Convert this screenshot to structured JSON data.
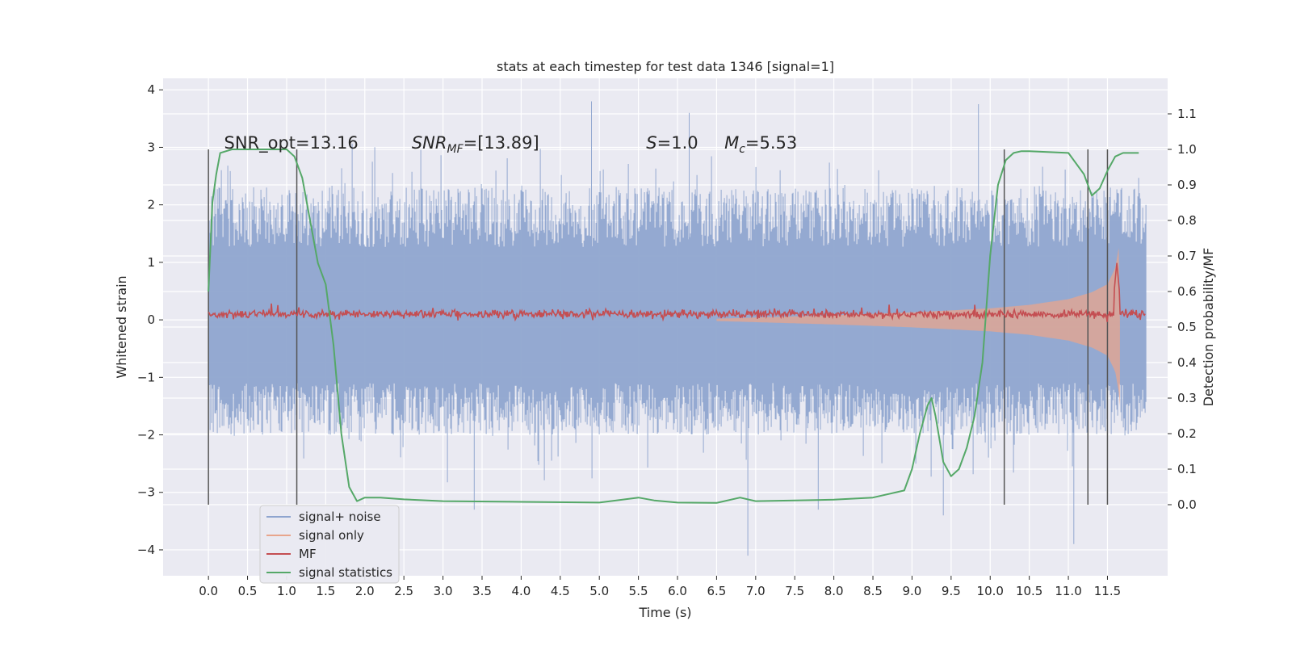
{
  "chart_data": {
    "type": "line",
    "title": "stats at each timestep for test data 1346 [signal=1]",
    "xlabel": "Time (s)",
    "ylabel": "Whitened strain",
    "ylabel_right": "Detection probability/MF",
    "xlim": [
      -0.58,
      12.27
    ],
    "ylim": [
      -4.45,
      4.2
    ],
    "ylim_right": [
      -0.2,
      1.2
    ],
    "grid": true,
    "legend_position": "lower-left",
    "x_ticks": [
      "0.0",
      "0.5",
      "1.0",
      "1.5",
      "2.0",
      "2.5",
      "3.0",
      "3.5",
      "4.0",
      "4.5",
      "5.0",
      "5.5",
      "6.0",
      "6.5",
      "7.0",
      "7.5",
      "8.0",
      "8.5",
      "9.0",
      "9.5",
      "10.0",
      "10.5",
      "11.0",
      "11.5"
    ],
    "y_ticks_left": [
      "4",
      "3",
      "2",
      "1",
      "0",
      "−1",
      "−2",
      "−3",
      "−4"
    ],
    "y_ticks_right": [
      "1.1",
      "1.0",
      "0.9",
      "0.8",
      "0.7",
      "0.6",
      "0.5",
      "0.4",
      "0.3",
      "0.2",
      "0.1",
      "0.0"
    ],
    "annotations": [
      {
        "text": "SNR_opt=13.16",
        "x": 0.2
      },
      {
        "text": "SNR_MF=[13.89]",
        "x": 2.6
      },
      {
        "text": "S=1.0",
        "x": 5.6
      },
      {
        "text": "M_c=5.53",
        "x": 6.6
      }
    ],
    "vertical_lines": [
      0.0,
      1.13,
      10.18,
      11.25,
      11.5
    ],
    "series": [
      {
        "name": "signal+ noise",
        "color": "#8fa5cf",
        "kind": "noise_band",
        "x_range": [
          0.0,
          11.99
        ],
        "typical_envelope": [
          -2.0,
          2.3
        ],
        "extremes": [
          -4.1,
          3.8
        ]
      },
      {
        "name": "signal only",
        "color": "#e8a58c",
        "kind": "chirp",
        "x_range": [
          6.5,
          11.65
        ],
        "envelope": [
          [
            6.5,
            0.02
          ],
          [
            8.0,
            0.08
          ],
          [
            9.0,
            0.13
          ],
          [
            10.0,
            0.2
          ],
          [
            10.5,
            0.26
          ],
          [
            11.0,
            0.36
          ],
          [
            11.3,
            0.48
          ],
          [
            11.5,
            0.62
          ],
          [
            11.6,
            0.9
          ],
          [
            11.65,
            1.3
          ]
        ]
      },
      {
        "name": "MF",
        "color": "#c44e52",
        "kind": "jitter",
        "x_range": [
          0.0,
          11.99
        ],
        "level": 0.1,
        "amplitude": 0.06,
        "peak": {
          "x": 11.62,
          "y": 1.0
        }
      },
      {
        "name": "signal statistics",
        "color": "#55a868",
        "axis": "right",
        "x": [
          0.0,
          0.05,
          0.1,
          0.15,
          0.3,
          0.5,
          0.8,
          1.0,
          1.1,
          1.2,
          1.3,
          1.4,
          1.5,
          1.6,
          1.7,
          1.8,
          1.9,
          2.0,
          2.2,
          2.5,
          3.0,
          4.0,
          5.0,
          5.5,
          5.7,
          6.0,
          6.5,
          6.8,
          7.0,
          7.5,
          8.0,
          8.5,
          8.9,
          9.0,
          9.1,
          9.2,
          9.25,
          9.3,
          9.4,
          9.5,
          9.6,
          9.7,
          9.8,
          9.9,
          10.0,
          10.1,
          10.2,
          10.3,
          10.4,
          10.5,
          11.0,
          11.2,
          11.3,
          11.4,
          11.5,
          11.6,
          11.7,
          11.8,
          11.9
        ],
        "y": [
          0.6,
          0.85,
          0.93,
          0.99,
          1.0,
          1.0,
          1.0,
          1.0,
          0.98,
          0.92,
          0.8,
          0.68,
          0.62,
          0.45,
          0.2,
          0.05,
          0.01,
          0.02,
          0.02,
          0.015,
          0.01,
          0.008,
          0.006,
          0.02,
          0.012,
          0.006,
          0.005,
          0.02,
          0.01,
          0.012,
          0.014,
          0.02,
          0.04,
          0.1,
          0.2,
          0.28,
          0.3,
          0.25,
          0.12,
          0.08,
          0.1,
          0.16,
          0.25,
          0.4,
          0.7,
          0.9,
          0.97,
          0.99,
          0.995,
          0.995,
          0.99,
          0.93,
          0.87,
          0.89,
          0.94,
          0.98,
          0.99,
          0.99,
          0.99
        ]
      }
    ]
  }
}
